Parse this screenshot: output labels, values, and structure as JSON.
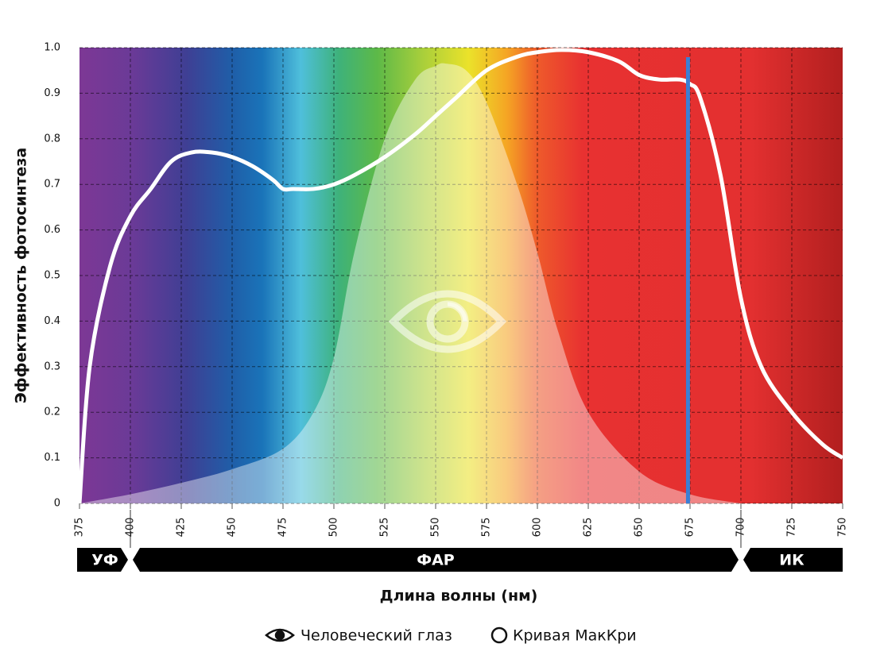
{
  "chart_data": {
    "type": "line",
    "x_label": "Длина волны (нм)",
    "y_label": "Эффективность фотосинтеза",
    "xlim": [
      375,
      750
    ],
    "xticks": [
      375,
      400,
      425,
      450,
      475,
      500,
      525,
      550,
      575,
      600,
      625,
      650,
      675,
      700,
      725,
      750
    ],
    "ylim": [
      0,
      1
    ],
    "yticks": [
      0,
      0.1,
      0.2,
      0.3,
      0.4,
      0.5,
      0.6,
      0.7,
      0.8,
      0.9,
      {
        "value": 1,
        "label": "1.0"
      }
    ],
    "grid": true,
    "series": [
      {
        "name": "Человеческий глаз",
        "kind": "area",
        "color": "rgba(255,255,255,0.42)",
        "x": [
          375,
          400,
          425,
          450,
          475,
          490,
          500,
          510,
          525,
          540,
          550,
          555,
          565,
          575,
          590,
          600,
          610,
          625,
          650,
          675,
          700
        ],
        "values": [
          0,
          0.02,
          0.045,
          0.075,
          0.12,
          0.2,
          0.32,
          0.55,
          0.8,
          0.93,
          0.96,
          0.965,
          0.95,
          0.88,
          0.7,
          0.55,
          0.38,
          0.2,
          0.07,
          0.02,
          0
        ]
      },
      {
        "name": "Кривая МакКри",
        "kind": "line",
        "color": "#ffffff",
        "x": [
          375,
          380,
          390,
          400,
          410,
          420,
          430,
          440,
          450,
          460,
          470,
          475,
          480,
          490,
          500,
          510,
          525,
          540,
          550,
          560,
          575,
          590,
          600,
          612,
          625,
          640,
          650,
          660,
          670,
          675,
          680,
          690,
          700,
          710,
          725,
          740,
          750
        ],
        "values": [
          0,
          0.3,
          0.52,
          0.63,
          0.69,
          0.75,
          0.77,
          0.77,
          0.76,
          0.74,
          0.71,
          0.69,
          0.69,
          0.69,
          0.7,
          0.72,
          0.76,
          0.81,
          0.85,
          0.89,
          0.95,
          0.98,
          0.99,
          0.995,
          0.99,
          0.97,
          0.94,
          0.93,
          0.93,
          0.92,
          0.89,
          0.72,
          0.45,
          0.3,
          0.2,
          0.13,
          0.1
        ]
      }
    ],
    "marker_line": {
      "value": 674,
      "color": "#3a7fd5"
    },
    "bands": [
      {
        "label": "УФ",
        "start": 375,
        "end": 400
      },
      {
        "label": "ФАР",
        "start": 400,
        "end": 700
      },
      {
        "label": "ИК",
        "start": 700,
        "end": 750
      }
    ]
  }
}
